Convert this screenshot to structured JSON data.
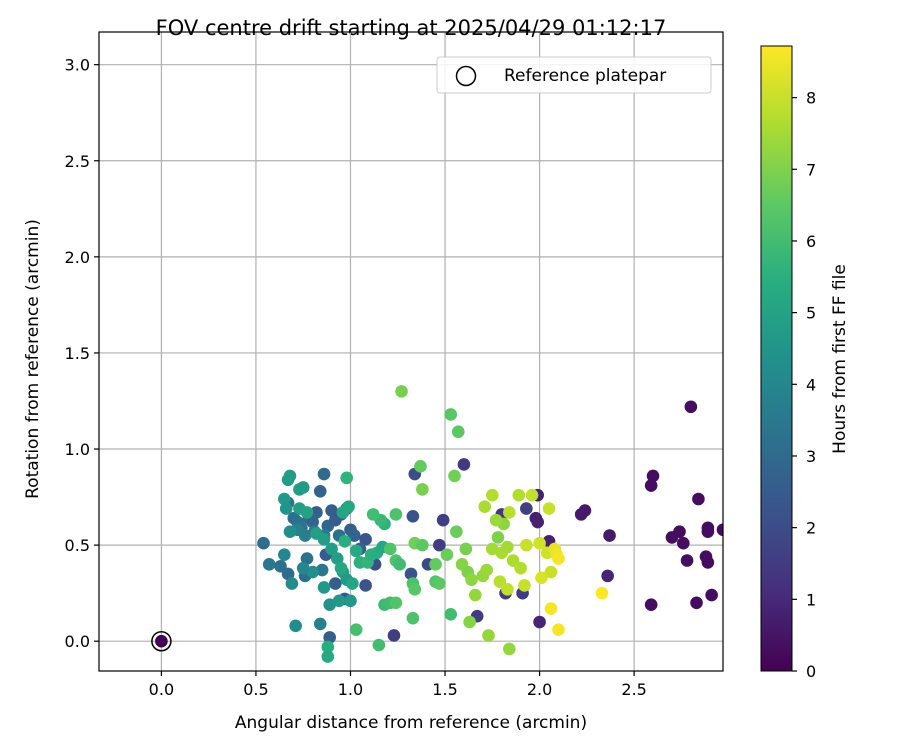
{
  "chart_data": {
    "type": "scatter",
    "title": "FOV centre drift starting at 2025/04/29 01:12:17",
    "xlabel": "Angular distance from reference (arcmin)",
    "ylabel": "Rotation from reference (arcmin)",
    "xlim": [
      -0.33,
      2.97
    ],
    "ylim": [
      -0.155,
      3.17
    ],
    "xticks": [
      "0.0",
      "0.5",
      "1.0",
      "1.5",
      "2.0",
      "2.5"
    ],
    "yticks": [
      "0.0",
      "0.5",
      "1.0",
      "1.5",
      "2.0",
      "2.5",
      "3.0"
    ],
    "grid": true,
    "legend": {
      "position": "top-right",
      "entries": [
        "Reference platepar"
      ]
    },
    "colorbar": {
      "label": "Hours from first FF file",
      "colormap": "viridis",
      "range": [
        0,
        8.72
      ],
      "ticks": [
        "0",
        "1",
        "2",
        "3",
        "4",
        "5",
        "6",
        "7",
        "8"
      ]
    },
    "reference_point": {
      "x": 0.0,
      "y": 0.0
    },
    "points": [
      {
        "x": 2.8,
        "y": 1.22,
        "h": 0.3
      },
      {
        "x": 2.6,
        "y": 0.86,
        "h": 0.3
      },
      {
        "x": 2.59,
        "y": 0.81,
        "h": 0.3
      },
      {
        "x": 2.84,
        "y": 0.74,
        "h": 0.3
      },
      {
        "x": 2.89,
        "y": 0.59,
        "h": 0.3
      },
      {
        "x": 2.89,
        "y": 0.57,
        "h": 0.3
      },
      {
        "x": 2.97,
        "y": 0.58,
        "h": 0.3
      },
      {
        "x": 2.74,
        "y": 0.57,
        "h": 0.3
      },
      {
        "x": 2.7,
        "y": 0.54,
        "h": 0.3
      },
      {
        "x": 2.76,
        "y": 0.51,
        "h": 0.3
      },
      {
        "x": 2.88,
        "y": 0.44,
        "h": 0.3
      },
      {
        "x": 2.89,
        "y": 0.41,
        "h": 0.3
      },
      {
        "x": 2.78,
        "y": 0.42,
        "h": 0.3
      },
      {
        "x": 2.91,
        "y": 0.24,
        "h": 0.3
      },
      {
        "x": 2.83,
        "y": 0.2,
        "h": 0.3
      },
      {
        "x": 2.59,
        "y": 0.19,
        "h": 0.3
      },
      {
        "x": 2.37,
        "y": 0.55,
        "h": 0.6
      },
      {
        "x": 2.24,
        "y": 0.68,
        "h": 0.6
      },
      {
        "x": 2.22,
        "y": 0.66,
        "h": 0.6
      },
      {
        "x": 2.36,
        "y": 0.34,
        "h": 0.9
      },
      {
        "x": 1.99,
        "y": 0.76,
        "h": 0.8
      },
      {
        "x": 1.98,
        "y": 0.64,
        "h": 0.8
      },
      {
        "x": 1.99,
        "y": 0.62,
        "h": 0.8
      },
      {
        "x": 2.05,
        "y": 0.52,
        "h": 0.8
      },
      {
        "x": 2.0,
        "y": 0.1,
        "h": 0.9
      },
      {
        "x": 1.6,
        "y": 0.92,
        "h": 1.4
      },
      {
        "x": 1.49,
        "y": 0.63,
        "h": 1.6
      },
      {
        "x": 1.47,
        "y": 0.5,
        "h": 1.5
      },
      {
        "x": 1.34,
        "y": 0.87,
        "h": 2.0
      },
      {
        "x": 1.33,
        "y": 0.65,
        "h": 2.2
      },
      {
        "x": 1.23,
        "y": 0.03,
        "h": 1.6
      },
      {
        "x": 1.67,
        "y": 0.13,
        "h": 1.5
      },
      {
        "x": 1.82,
        "y": 0.25,
        "h": 1.5
      },
      {
        "x": 1.91,
        "y": 0.25,
        "h": 1.5
      },
      {
        "x": 1.93,
        "y": 0.69,
        "h": 1.6
      },
      {
        "x": 1.8,
        "y": 0.66,
        "h": 1.4
      },
      {
        "x": 1.32,
        "y": 0.35,
        "h": 2.2
      },
      {
        "x": 1.41,
        "y": 0.4,
        "h": 2.0
      },
      {
        "x": 1.13,
        "y": 0.4,
        "h": 2.1
      },
      {
        "x": 1.08,
        "y": 0.29,
        "h": 2.2
      },
      {
        "x": 0.97,
        "y": 0.22,
        "h": 2.4
      },
      {
        "x": 0.92,
        "y": 0.3,
        "h": 2.6
      },
      {
        "x": 0.89,
        "y": 0.02,
        "h": 2.6
      },
      {
        "x": 0.87,
        "y": 0.45,
        "h": 2.5
      },
      {
        "x": 0.54,
        "y": 0.51,
        "h": 3.1
      },
      {
        "x": 0.57,
        "y": 0.4,
        "h": 3.4
      },
      {
        "x": 0.63,
        "y": 0.39,
        "h": 3.2
      },
      {
        "x": 0.67,
        "y": 0.35,
        "h": 3.0
      },
      {
        "x": 0.76,
        "y": 0.34,
        "h": 3.1
      },
      {
        "x": 0.77,
        "y": 0.43,
        "h": 3.2
      },
      {
        "x": 0.85,
        "y": 0.37,
        "h": 3.4
      },
      {
        "x": 0.67,
        "y": 0.72,
        "h": 3.3
      },
      {
        "x": 0.7,
        "y": 0.64,
        "h": 3.1
      },
      {
        "x": 0.72,
        "y": 0.62,
        "h": 3.2
      },
      {
        "x": 0.74,
        "y": 0.59,
        "h": 3.3
      },
      {
        "x": 0.78,
        "y": 0.64,
        "h": 3.0
      },
      {
        "x": 0.8,
        "y": 0.62,
        "h": 2.8
      },
      {
        "x": 0.82,
        "y": 0.67,
        "h": 2.7
      },
      {
        "x": 0.84,
        "y": 0.78,
        "h": 2.8
      },
      {
        "x": 0.86,
        "y": 0.87,
        "h": 3.0
      },
      {
        "x": 0.88,
        "y": 0.6,
        "h": 2.9
      },
      {
        "x": 0.9,
        "y": 0.68,
        "h": 2.6
      },
      {
        "x": 0.92,
        "y": 0.63,
        "h": 2.6
      },
      {
        "x": 0.95,
        "y": 0.66,
        "h": 2.5
      },
      {
        "x": 0.98,
        "y": 0.69,
        "h": 2.4
      },
      {
        "x": 1.0,
        "y": 0.58,
        "h": 2.6
      },
      {
        "x": 1.02,
        "y": 0.55,
        "h": 2.8
      },
      {
        "x": 1.05,
        "y": 0.48,
        "h": 2.7
      },
      {
        "x": 1.08,
        "y": 0.53,
        "h": 2.4
      },
      {
        "x": 0.94,
        "y": 0.55,
        "h": 3.2
      },
      {
        "x": 0.86,
        "y": 0.55,
        "h": 3.5
      },
      {
        "x": 0.81,
        "y": 0.57,
        "h": 3.6
      },
      {
        "x": 0.76,
        "y": 0.55,
        "h": 3.7
      },
      {
        "x": 0.72,
        "y": 0.58,
        "h": 3.8
      },
      {
        "x": 0.65,
        "y": 0.45,
        "h": 4.0
      },
      {
        "x": 0.69,
        "y": 0.3,
        "h": 4.1
      },
      {
        "x": 0.71,
        "y": 0.08,
        "h": 4.2
      },
      {
        "x": 0.84,
        "y": 0.09,
        "h": 3.8
      },
      {
        "x": 0.89,
        "y": 0.19,
        "h": 4.4
      },
      {
        "x": 0.94,
        "y": 0.21,
        "h": 4.6
      },
      {
        "x": 1.0,
        "y": 0.21,
        "h": 4.6
      },
      {
        "x": 0.86,
        "y": 0.28,
        "h": 4.6
      },
      {
        "x": 0.8,
        "y": 0.36,
        "h": 4.3
      },
      {
        "x": 0.75,
        "y": 0.38,
        "h": 4.0
      },
      {
        "x": 0.68,
        "y": 0.57,
        "h": 4.3
      },
      {
        "x": 0.66,
        "y": 0.69,
        "h": 4.5
      },
      {
        "x": 0.65,
        "y": 0.74,
        "h": 4.6
      },
      {
        "x": 0.67,
        "y": 0.84,
        "h": 4.7
      },
      {
        "x": 0.68,
        "y": 0.86,
        "h": 4.8
      },
      {
        "x": 0.73,
        "y": 0.79,
        "h": 4.8
      },
      {
        "x": 0.75,
        "y": 0.8,
        "h": 4.7
      },
      {
        "x": 0.73,
        "y": 0.69,
        "h": 4.9
      },
      {
        "x": 0.77,
        "y": 0.67,
        "h": 5.0
      },
      {
        "x": 0.82,
        "y": 0.56,
        "h": 4.9
      },
      {
        "x": 0.86,
        "y": 0.53,
        "h": 4.8
      },
      {
        "x": 0.9,
        "y": 0.48,
        "h": 4.8
      },
      {
        "x": 0.93,
        "y": 0.43,
        "h": 4.9
      },
      {
        "x": 0.96,
        "y": 0.36,
        "h": 4.8
      },
      {
        "x": 0.98,
        "y": 0.32,
        "h": 4.7
      },
      {
        "x": 0.95,
        "y": 0.38,
        "h": 5.2
      },
      {
        "x": 1.01,
        "y": 0.3,
        "h": 5.1
      },
      {
        "x": 0.96,
        "y": 0.67,
        "h": 5.1
      },
      {
        "x": 0.99,
        "y": 0.7,
        "h": 5.2
      },
      {
        "x": 0.98,
        "y": 0.85,
        "h": 5.6
      },
      {
        "x": 0.97,
        "y": 0.52,
        "h": 5.4
      },
      {
        "x": 1.03,
        "y": 0.47,
        "h": 5.3
      },
      {
        "x": 1.05,
        "y": 0.41,
        "h": 5.5
      },
      {
        "x": 1.09,
        "y": 0.41,
        "h": 5.7
      },
      {
        "x": 1.11,
        "y": 0.45,
        "h": 5.5
      },
      {
        "x": 1.14,
        "y": 0.46,
        "h": 5.4
      },
      {
        "x": 1.17,
        "y": 0.49,
        "h": 5.2
      },
      {
        "x": 1.18,
        "y": 0.61,
        "h": 5.6
      },
      {
        "x": 1.16,
        "y": 0.63,
        "h": 5.8
      },
      {
        "x": 1.12,
        "y": 0.66,
        "h": 6.0
      },
      {
        "x": 1.24,
        "y": 0.66,
        "h": 6.2
      },
      {
        "x": 1.21,
        "y": 0.48,
        "h": 6.3
      },
      {
        "x": 1.24,
        "y": 0.42,
        "h": 6.2
      },
      {
        "x": 1.26,
        "y": 0.4,
        "h": 6.0
      },
      {
        "x": 1.18,
        "y": 0.19,
        "h": 5.9
      },
      {
        "x": 1.21,
        "y": 0.2,
        "h": 6.0
      },
      {
        "x": 1.24,
        "y": 0.2,
        "h": 6.3
      },
      {
        "x": 1.33,
        "y": 0.3,
        "h": 6.2
      },
      {
        "x": 1.15,
        "y": -0.02,
        "h": 6.0
      },
      {
        "x": 1.03,
        "y": 0.06,
        "h": 6.1
      },
      {
        "x": 0.88,
        "y": -0.03,
        "h": 5.4
      },
      {
        "x": 0.88,
        "y": -0.08,
        "h": 5.3
      },
      {
        "x": 1.33,
        "y": 0.12,
        "h": 6.2
      },
      {
        "x": 1.34,
        "y": 0.27,
        "h": 6.4
      },
      {
        "x": 1.45,
        "y": 0.31,
        "h": 6.3
      },
      {
        "x": 1.47,
        "y": 0.3,
        "h": 6.5
      },
      {
        "x": 1.45,
        "y": 0.4,
        "h": 6.6
      },
      {
        "x": 1.51,
        "y": 0.45,
        "h": 6.7
      },
      {
        "x": 1.34,
        "y": 0.51,
        "h": 6.8
      },
      {
        "x": 1.38,
        "y": 0.5,
        "h": 6.5
      },
      {
        "x": 1.27,
        "y": 1.3,
        "h": 6.9
      },
      {
        "x": 1.53,
        "y": 1.18,
        "h": 6.4
      },
      {
        "x": 1.57,
        "y": 1.09,
        "h": 6.5
      },
      {
        "x": 1.55,
        "y": 0.86,
        "h": 6.8
      },
      {
        "x": 1.37,
        "y": 0.91,
        "h": 6.6
      },
      {
        "x": 1.38,
        "y": 0.79,
        "h": 6.9
      },
      {
        "x": 1.53,
        "y": 0.14,
        "h": 6.0
      },
      {
        "x": 1.56,
        "y": 0.57,
        "h": 6.7
      },
      {
        "x": 1.61,
        "y": 0.48,
        "h": 6.9
      },
      {
        "x": 1.59,
        "y": 0.4,
        "h": 7.1
      },
      {
        "x": 1.62,
        "y": 0.36,
        "h": 7.0
      },
      {
        "x": 1.64,
        "y": 0.32,
        "h": 7.2
      },
      {
        "x": 1.63,
        "y": 0.1,
        "h": 7.1
      },
      {
        "x": 1.66,
        "y": 0.24,
        "h": 7.3
      },
      {
        "x": 1.7,
        "y": 0.34,
        "h": 7.3
      },
      {
        "x": 1.72,
        "y": 0.37,
        "h": 7.4
      },
      {
        "x": 1.75,
        "y": 0.48,
        "h": 7.5
      },
      {
        "x": 1.73,
        "y": 0.03,
        "h": 7.3
      },
      {
        "x": 1.78,
        "y": 0.54,
        "h": 7.0
      },
      {
        "x": 1.81,
        "y": 0.61,
        "h": 7.2
      },
      {
        "x": 1.77,
        "y": 0.63,
        "h": 7.4
      },
      {
        "x": 1.71,
        "y": 0.7,
        "h": 7.6
      },
      {
        "x": 1.75,
        "y": 0.76,
        "h": 7.7
      },
      {
        "x": 1.8,
        "y": 0.46,
        "h": 7.6
      },
      {
        "x": 1.83,
        "y": 0.49,
        "h": 7.5
      },
      {
        "x": 1.86,
        "y": 0.42,
        "h": 7.6
      },
      {
        "x": 1.84,
        "y": -0.04,
        "h": 7.3
      },
      {
        "x": 1.79,
        "y": 0.31,
        "h": 7.8
      },
      {
        "x": 1.83,
        "y": 0.27,
        "h": 7.9
      },
      {
        "x": 1.9,
        "y": 0.38,
        "h": 7.7
      },
      {
        "x": 1.92,
        "y": 0.29,
        "h": 8.0
      },
      {
        "x": 1.93,
        "y": 0.5,
        "h": 8.0
      },
      {
        "x": 1.84,
        "y": 0.67,
        "h": 7.8
      },
      {
        "x": 1.89,
        "y": 0.76,
        "h": 7.7
      },
      {
        "x": 1.96,
        "y": 0.76,
        "h": 7.9
      },
      {
        "x": 2.05,
        "y": 0.69,
        "h": 8.0
      },
      {
        "x": 2.0,
        "y": 0.51,
        "h": 8.1
      },
      {
        "x": 2.04,
        "y": 0.46,
        "h": 8.1
      },
      {
        "x": 2.06,
        "y": 0.36,
        "h": 8.0
      },
      {
        "x": 2.01,
        "y": 0.33,
        "h": 8.2
      },
      {
        "x": 2.08,
        "y": 0.48,
        "h": 8.4
      },
      {
        "x": 2.09,
        "y": 0.45,
        "h": 8.5
      },
      {
        "x": 2.1,
        "y": 0.43,
        "h": 8.6
      },
      {
        "x": 2.1,
        "y": 0.06,
        "h": 8.6
      },
      {
        "x": 2.06,
        "y": 0.17,
        "h": 8.6
      },
      {
        "x": 2.33,
        "y": 0.25,
        "h": 8.7
      }
    ]
  }
}
